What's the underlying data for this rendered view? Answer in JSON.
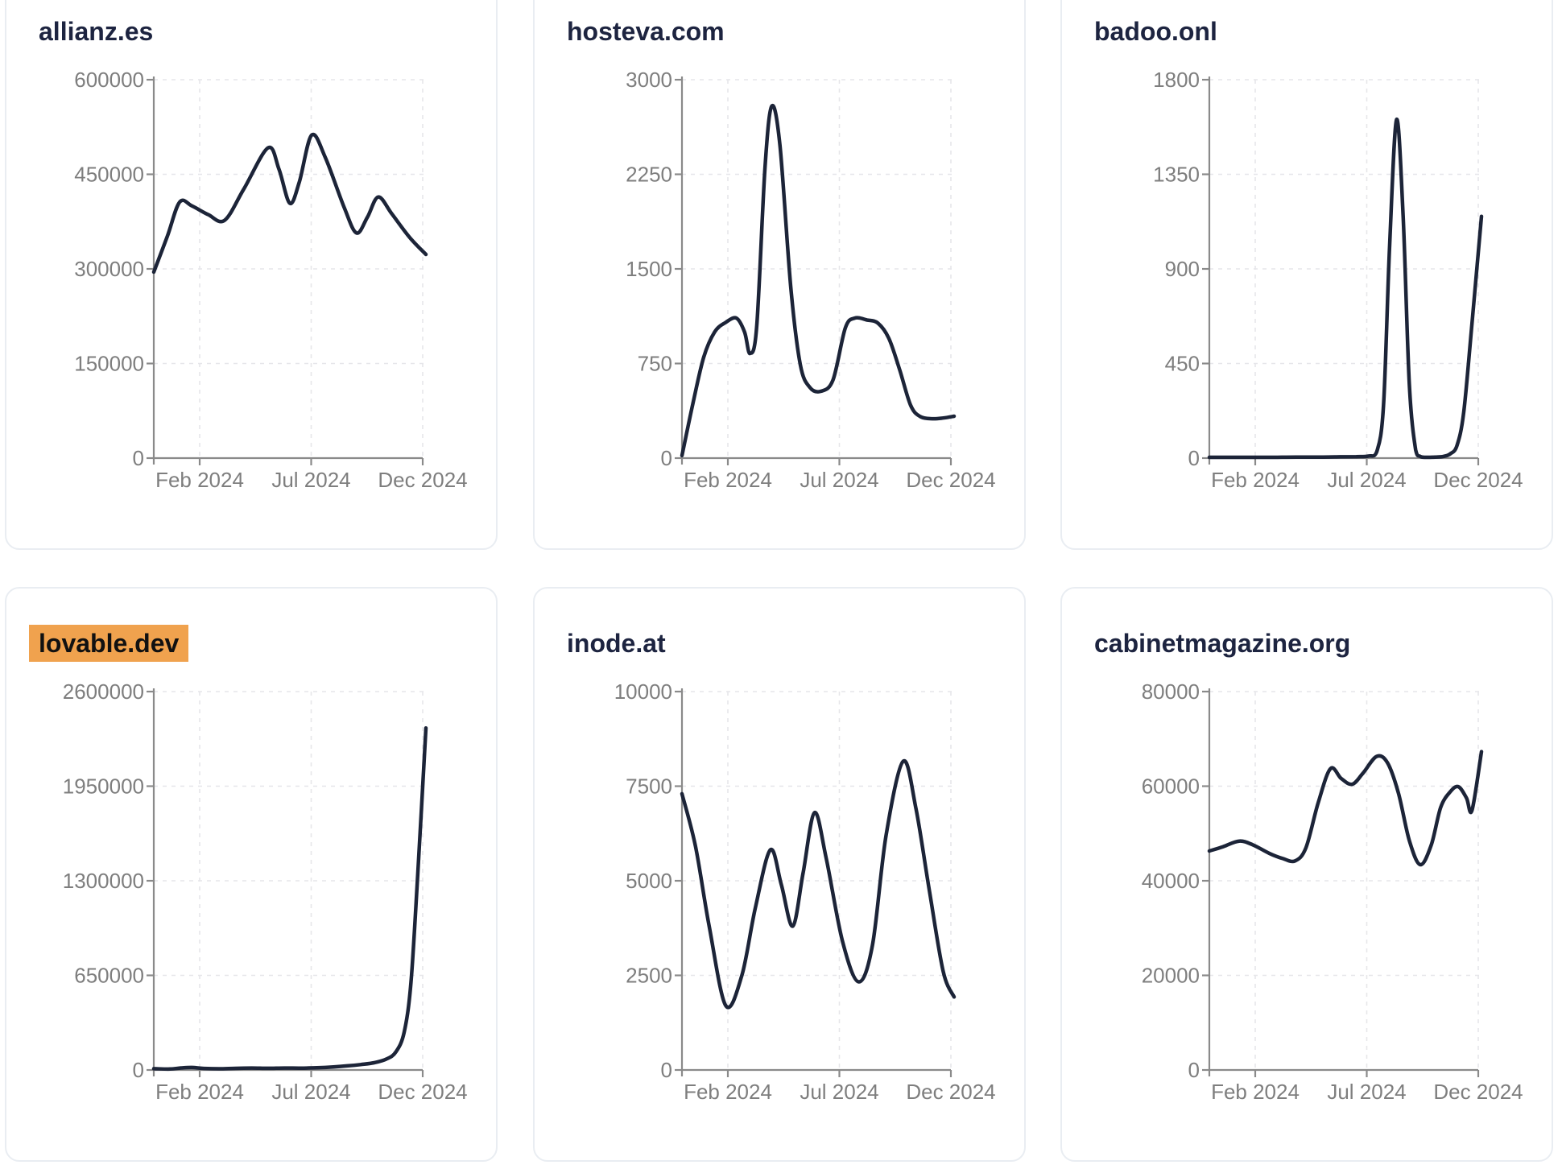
{
  "page": {
    "background": "#ffffff"
  },
  "colors": {
    "line": "#1c2438",
    "axis": "#8a8a8a",
    "tick_label": "#7e7e7e",
    "grid": "#e6e6ea",
    "card_border": "#e9edf2",
    "title": "#1d2440",
    "highlight_bg": "#f0a24e",
    "highlight_text": "#111111"
  },
  "chart_data": [
    {
      "type": "line",
      "title": "allianz.es",
      "highlighted": false,
      "x_tick_labels": [
        "Feb 2024",
        "Jul 2024",
        "Dec 2024"
      ],
      "y_tick_labels": [
        "0",
        "150000",
        "300000",
        "450000",
        "600000"
      ],
      "ymax": 600000,
      "ylim": [
        0,
        600000
      ],
      "grid": true,
      "points": [
        [
          0,
          295000
        ],
        [
          0.05,
          352000
        ],
        [
          0.095,
          406000
        ],
        [
          0.14,
          400000
        ],
        [
          0.2,
          386000
        ],
        [
          0.26,
          377000
        ],
        [
          0.33,
          426000
        ],
        [
          0.42,
          492000
        ],
        [
          0.46,
          458000
        ],
        [
          0.5,
          404000
        ],
        [
          0.535,
          438000
        ],
        [
          0.58,
          512000
        ],
        [
          0.63,
          477000
        ],
        [
          0.7,
          397000
        ],
        [
          0.745,
          357000
        ],
        [
          0.785,
          382000
        ],
        [
          0.825,
          414000
        ],
        [
          0.875,
          387000
        ],
        [
          0.94,
          350000
        ],
        [
          1,
          323000
        ]
      ]
    },
    {
      "type": "line",
      "title": "hosteva.com",
      "highlighted": false,
      "x_tick_labels": [
        "Feb 2024",
        "Jul 2024",
        "Dec 2024"
      ],
      "y_tick_labels": [
        "0",
        "750",
        "1500",
        "2250",
        "3000"
      ],
      "ymax": 3000,
      "ylim": [
        0,
        3000
      ],
      "grid": true,
      "points": [
        [
          0,
          20
        ],
        [
          0.04,
          430
        ],
        [
          0.08,
          800
        ],
        [
          0.12,
          1000
        ],
        [
          0.16,
          1075
        ],
        [
          0.2,
          1110
        ],
        [
          0.23,
          1000
        ],
        [
          0.25,
          830
        ],
        [
          0.275,
          1050
        ],
        [
          0.305,
          2300
        ],
        [
          0.33,
          2790
        ],
        [
          0.36,
          2480
        ],
        [
          0.4,
          1350
        ],
        [
          0.435,
          740
        ],
        [
          0.47,
          560
        ],
        [
          0.51,
          530
        ],
        [
          0.555,
          620
        ],
        [
          0.6,
          1030
        ],
        [
          0.635,
          1110
        ],
        [
          0.68,
          1095
        ],
        [
          0.72,
          1070
        ],
        [
          0.76,
          950
        ],
        [
          0.8,
          700
        ],
        [
          0.84,
          420
        ],
        [
          0.875,
          330
        ],
        [
          0.92,
          312
        ],
        [
          0.96,
          318
        ],
        [
          1,
          332
        ]
      ]
    },
    {
      "type": "line",
      "title": "badoo.onl",
      "highlighted": false,
      "x_tick_labels": [
        "Feb 2024",
        "Jul 2024",
        "Dec 2024"
      ],
      "y_tick_labels": [
        "0",
        "450",
        "900",
        "1350",
        "1800"
      ],
      "ymax": 1800,
      "ylim": [
        0,
        1800
      ],
      "grid": true,
      "points": [
        [
          0,
          4
        ],
        [
          0.08,
          4
        ],
        [
          0.16,
          4
        ],
        [
          0.24,
          4
        ],
        [
          0.32,
          5
        ],
        [
          0.4,
          5
        ],
        [
          0.48,
          6
        ],
        [
          0.54,
          7
        ],
        [
          0.585,
          10
        ],
        [
          0.615,
          30
        ],
        [
          0.64,
          250
        ],
        [
          0.662,
          1000
        ],
        [
          0.688,
          1610
        ],
        [
          0.712,
          1150
        ],
        [
          0.735,
          350
        ],
        [
          0.758,
          40
        ],
        [
          0.775,
          8
        ],
        [
          0.8,
          4
        ],
        [
          0.83,
          5
        ],
        [
          0.86,
          8
        ],
        [
          0.885,
          20
        ],
        [
          0.91,
          60
        ],
        [
          0.935,
          220
        ],
        [
          0.965,
          640
        ],
        [
          1,
          1150
        ]
      ]
    },
    {
      "type": "line",
      "title": "lovable.dev",
      "highlighted": true,
      "x_tick_labels": [
        "Feb 2024",
        "Jul 2024",
        "Dec 2024"
      ],
      "y_tick_labels": [
        "0",
        "650000",
        "1300000",
        "1950000",
        "2600000"
      ],
      "ymax": 2600000,
      "ylim": [
        0,
        2600000
      ],
      "grid": true,
      "points": [
        [
          0,
          9000
        ],
        [
          0.06,
          6500
        ],
        [
          0.1,
          14000
        ],
        [
          0.14,
          17000
        ],
        [
          0.18,
          11000
        ],
        [
          0.24,
          8500
        ],
        [
          0.3,
          11000
        ],
        [
          0.36,
          13000
        ],
        [
          0.42,
          11500
        ],
        [
          0.48,
          13500
        ],
        [
          0.54,
          12500
        ],
        [
          0.6,
          15000
        ],
        [
          0.66,
          21000
        ],
        [
          0.71,
          28000
        ],
        [
          0.76,
          37000
        ],
        [
          0.81,
          50000
        ],
        [
          0.855,
          75000
        ],
        [
          0.89,
          125000
        ],
        [
          0.92,
          260000
        ],
        [
          0.945,
          600000
        ],
        [
          0.97,
          1350000
        ],
        [
          1,
          2350000
        ]
      ]
    },
    {
      "type": "line",
      "title": "inode.at",
      "highlighted": false,
      "x_tick_labels": [
        "Feb 2024",
        "Jul 2024",
        "Dec 2024"
      ],
      "y_tick_labels": [
        "0",
        "2500",
        "5000",
        "7500",
        "10000"
      ],
      "ymax": 10000,
      "ylim": [
        0,
        10000
      ],
      "grid": true,
      "points": [
        [
          0,
          7300
        ],
        [
          0.05,
          5900
        ],
        [
          0.1,
          3800
        ],
        [
          0.161,
          1700
        ],
        [
          0.22,
          2500
        ],
        [
          0.27,
          4300
        ],
        [
          0.325,
          5820
        ],
        [
          0.365,
          4900
        ],
        [
          0.407,
          3800
        ],
        [
          0.445,
          5200
        ],
        [
          0.487,
          6800
        ],
        [
          0.53,
          5600
        ],
        [
          0.59,
          3400
        ],
        [
          0.649,
          2330
        ],
        [
          0.7,
          3300
        ],
        [
          0.75,
          6200
        ],
        [
          0.813,
          8160
        ],
        [
          0.86,
          6900
        ],
        [
          0.91,
          4700
        ],
        [
          0.96,
          2600
        ],
        [
          1,
          1930
        ]
      ]
    },
    {
      "type": "line",
      "title": "cabinetmagazine.org",
      "highlighted": false,
      "x_tick_labels": [
        "Feb 2024",
        "Jul 2024",
        "Dec 2024"
      ],
      "y_tick_labels": [
        "0",
        "20000",
        "40000",
        "60000",
        "80000"
      ],
      "ymax": 80000,
      "ylim": [
        0,
        80000
      ],
      "grid": true,
      "points": [
        [
          0,
          46300
        ],
        [
          0.05,
          47200
        ],
        [
          0.11,
          48400
        ],
        [
          0.16,
          47600
        ],
        [
          0.22,
          45800
        ],
        [
          0.27,
          44700
        ],
        [
          0.315,
          44200
        ],
        [
          0.355,
          47000
        ],
        [
          0.4,
          56500
        ],
        [
          0.445,
          63700
        ],
        [
          0.485,
          61600
        ],
        [
          0.525,
          60400
        ],
        [
          0.565,
          62800
        ],
        [
          0.615,
          66300
        ],
        [
          0.655,
          64900
        ],
        [
          0.695,
          58500
        ],
        [
          0.735,
          48500
        ],
        [
          0.775,
          43400
        ],
        [
          0.815,
          47500
        ],
        [
          0.85,
          55500
        ],
        [
          0.885,
          58800
        ],
        [
          0.915,
          59900
        ],
        [
          0.945,
          57500
        ],
        [
          0.965,
          54900
        ],
        [
          1,
          67300
        ]
      ]
    }
  ]
}
